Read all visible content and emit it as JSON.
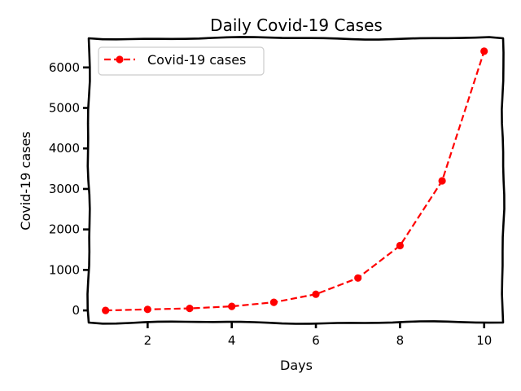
{
  "chart_data": {
    "type": "line",
    "title": "Daily Covid-19 Cases",
    "xlabel": "Days",
    "ylabel": "Covid-19 cases",
    "x": [
      1,
      2,
      3,
      4,
      5,
      6,
      7,
      8,
      9,
      10
    ],
    "series": [
      {
        "name": "Covid-19 cases",
        "values": [
          0,
          25,
          50,
          100,
          200,
          400,
          800,
          1600,
          3200,
          6400
        ],
        "color": "#ff0000",
        "line_style": "dashed",
        "marker": "circle"
      }
    ],
    "xlim": [
      0.6,
      10.45
    ],
    "ylim": [
      -300,
      6720
    ],
    "xticks": [
      2,
      4,
      6,
      8,
      10
    ],
    "yticks": [
      0,
      1000,
      2000,
      3000,
      4000,
      5000,
      6000
    ],
    "grid": false,
    "legend_position": "top-left",
    "style": "xkcd"
  }
}
